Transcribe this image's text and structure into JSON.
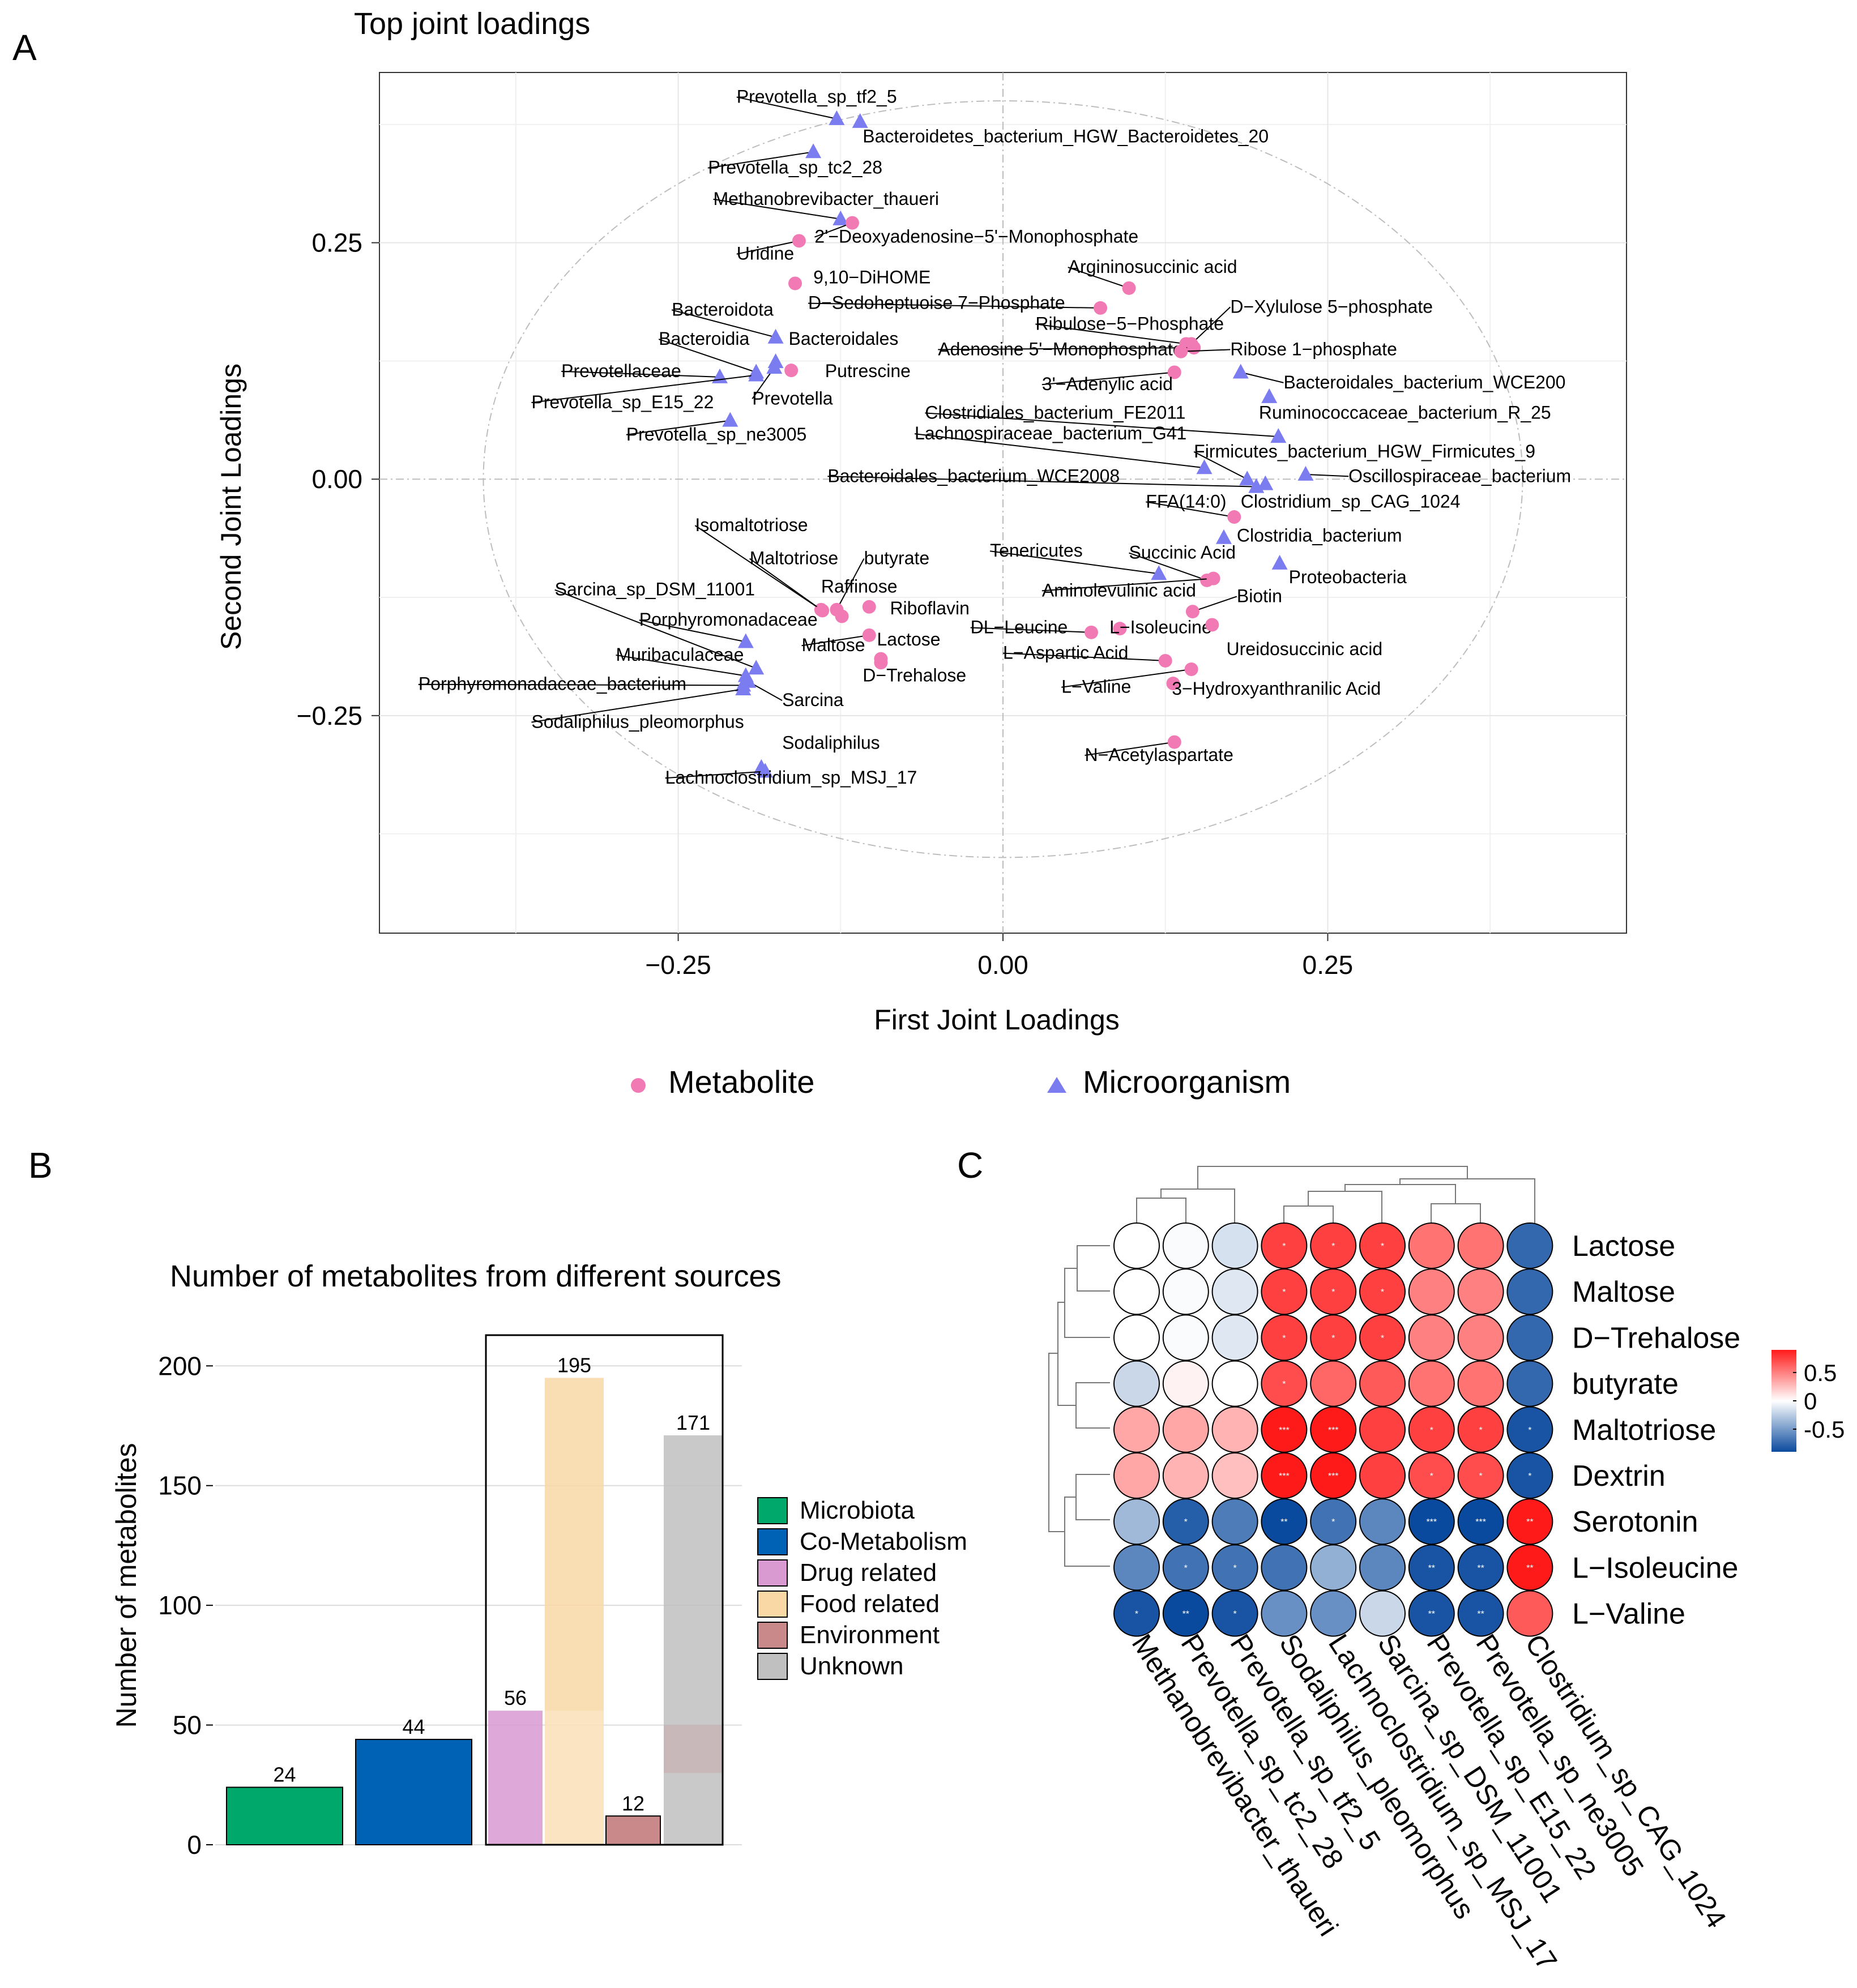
{
  "panel_labels": {
    "a": "A",
    "b": "B",
    "c": "C"
  },
  "colors": {
    "metabolite": "#f27ab4",
    "metabolite_dark": "#e8186e",
    "microorganism": "#7b7cf0",
    "microorganism_dark": "#2a2af0",
    "Microbiota": "#00a86b",
    "Co-Metabolism": "#0062b4",
    "Drug related": "#d89ad1",
    "Food related": "#f9d8a6",
    "Environment": "#c9888a",
    "Unknown": "#c0c0c0"
  },
  "chart_data": [
    {
      "type": "scatter",
      "title": "Top joint loadings",
      "xlabel": "First Joint Loadings",
      "ylabel": "Second Joint Loadings",
      "xlim": [
        -0.48,
        0.48
      ],
      "ylim": [
        -0.48,
        0.43
      ],
      "xticks": [
        -0.25,
        0.0,
        0.25
      ],
      "yticks": [
        -0.25,
        0.0,
        0.25
      ],
      "xtick_labels": [
        "−0.25",
        "0.00",
        "0.25"
      ],
      "ytick_labels": [
        "−0.25",
        "0.00",
        "0.25"
      ],
      "legend": [
        {
          "name": "Metabolite",
          "shape": "circle"
        },
        {
          "name": "Microorganism",
          "shape": "triangle"
        }
      ],
      "points": [
        {
          "label": "Prevotella_sp_tf2_5",
          "x": -0.128,
          "y": 0.381,
          "group": "Microorganism",
          "lx": -0.205,
          "ly": 0.398
        },
        {
          "label": "Bacteroidetes_bacterium_HGW_Bacteroidetes_20",
          "x": -0.11,
          "y": 0.378,
          "group": "Microorganism",
          "lx": -0.108,
          "ly": 0.356
        },
        {
          "label": "Prevotella_sp_tc2_28",
          "x": -0.146,
          "y": 0.346,
          "group": "Microorganism",
          "lx": -0.227,
          "ly": 0.323
        },
        {
          "label": "Methanobrevibacter_thaueri",
          "x": -0.125,
          "y": 0.275,
          "group": "Microorganism",
          "lx": -0.223,
          "ly": 0.29
        },
        {
          "label": "2'−Deoxyadenosine−5'−Monophosphate",
          "x": -0.116,
          "y": 0.271,
          "group": "Metabolite",
          "lx": -0.145,
          "ly": 0.25
        },
        {
          "label": "Uridine",
          "x": -0.157,
          "y": 0.252,
          "group": "Metabolite",
          "lx": -0.205,
          "ly": 0.232
        },
        {
          "label": "9,10−DiHOME",
          "x": -0.16,
          "y": 0.207,
          "group": "Metabolite",
          "lx": -0.146,
          "ly": 0.207
        },
        {
          "label": "Argininosuccinic acid",
          "x": 0.097,
          "y": 0.202,
          "group": "Metabolite",
          "lx": 0.05,
          "ly": 0.218
        },
        {
          "label": "D−Sedoheptuoise 7−Phosphate",
          "x": 0.075,
          "y": 0.181,
          "group": "Metabolite",
          "lx": -0.15,
          "ly": 0.18
        },
        {
          "label": "D−Xylulose 5−phosphate",
          "x": 0.145,
          "y": 0.143,
          "group": "Metabolite",
          "lx": 0.175,
          "ly": 0.176
        },
        {
          "label": "Ribulose−5−Phosphate",
          "x": 0.141,
          "y": 0.143,
          "group": "Metabolite",
          "lx": 0.025,
          "ly": 0.158
        },
        {
          "label": "Adenosine 5'−Monophosphate",
          "x": 0.147,
          "y": 0.139,
          "group": "Metabolite",
          "lx": -0.05,
          "ly": 0.131
        },
        {
          "label": "Ribose 1−phosphate",
          "x": 0.137,
          "y": 0.135,
          "group": "Metabolite",
          "lx": 0.175,
          "ly": 0.131
        },
        {
          "label": "3'−Adenylic acid",
          "x": 0.132,
          "y": 0.113,
          "group": "Metabolite",
          "lx": 0.03,
          "ly": 0.094
        },
        {
          "label": "Bacteroidales_bacterium_WCE200",
          "x": 0.183,
          "y": 0.113,
          "group": "Microorganism",
          "lx": 0.216,
          "ly": 0.096
        },
        {
          "label": "Ruminococcaceae_bacterium_R_25",
          "x": 0.205,
          "y": 0.087,
          "group": "Microorganism",
          "lx": 0.197,
          "ly": 0.064
        },
        {
          "label": "Clostridiales_bacterium_FE2011",
          "x": 0.212,
          "y": 0.045,
          "group": "Microorganism",
          "lx": -0.06,
          "ly": 0.064
        },
        {
          "label": "Lachnospiraceae_bacterium_G41",
          "x": 0.155,
          "y": 0.012,
          "group": "Microorganism",
          "lx": -0.068,
          "ly": 0.042
        },
        {
          "label": "Firmicutes_bacterium_HGW_Firmicutes_9",
          "x": 0.188,
          "y": 0.0,
          "group": "Microorganism",
          "lx": 0.147,
          "ly": 0.023
        },
        {
          "label": "Oscillospiraceae_bacterium",
          "x": 0.233,
          "y": 0.005,
          "group": "Microorganism",
          "lx": 0.266,
          "ly": -0.003
        },
        {
          "label": "Bacteroidales_bacterium_WCE2008",
          "x": 0.195,
          "y": -0.008,
          "group": "Microorganism",
          "lx": -0.135,
          "ly": -0.003
        },
        {
          "label": "FFA(14:0)",
          "x": 0.178,
          "y": -0.04,
          "group": "Metabolite",
          "lx": 0.11,
          "ly": -0.03
        },
        {
          "label": "Clostridium_sp_CAG_1024",
          "x": 0.202,
          "y": -0.005,
          "group": "Microorganism",
          "lx": 0.183,
          "ly": -0.03
        },
        {
          "label": "Bacteroidota",
          "x": -0.175,
          "y": 0.15,
          "group": "Microorganism",
          "lx": -0.255,
          "ly": 0.173
        },
        {
          "label": "Bacteroidia",
          "x": -0.19,
          "y": 0.113,
          "group": "Microorganism",
          "lx": -0.265,
          "ly": 0.142
        },
        {
          "label": "Bacteroidales",
          "x": -0.175,
          "y": 0.124,
          "group": "Microorganism",
          "lx": -0.165,
          "ly": 0.142
        },
        {
          "label": "Prevotellaceae",
          "x": -0.218,
          "y": 0.108,
          "group": "Microorganism",
          "lx": -0.34,
          "ly": 0.108
        },
        {
          "label": "Putrescine",
          "x": -0.163,
          "y": 0.115,
          "group": "Metabolite",
          "lx": -0.137,
          "ly": 0.108
        },
        {
          "label": "Prevotella_sp_E15_22",
          "x": -0.19,
          "y": 0.11,
          "group": "Microorganism",
          "lx": -0.363,
          "ly": 0.075
        },
        {
          "label": "Prevotella",
          "x": -0.176,
          "y": 0.118,
          "group": "Microorganism",
          "lx": -0.193,
          "ly": 0.079
        },
        {
          "label": "Prevotella_sp_ne3005",
          "x": -0.21,
          "y": 0.062,
          "group": "Microorganism",
          "lx": -0.29,
          "ly": 0.041
        },
        {
          "label": "Isomaltotriose",
          "x": -0.14,
          "y": -0.138,
          "group": "Metabolite",
          "lx": -0.237,
          "ly": -0.055
        },
        {
          "label": "Maltotriose",
          "x": -0.139,
          "y": -0.139,
          "group": "Metabolite",
          "lx": -0.195,
          "ly": -0.09
        },
        {
          "label": "butyrate",
          "x": -0.128,
          "y": -0.138,
          "group": "Metabolite",
          "lx": -0.107,
          "ly": -0.09
        },
        {
          "label": "Raffinose",
          "x": -0.124,
          "y": -0.145,
          "group": "Metabolite",
          "lx": -0.14,
          "ly": -0.12
        },
        {
          "label": "Riboflavin",
          "x": -0.103,
          "y": -0.135,
          "group": "Metabolite",
          "lx": -0.087,
          "ly": -0.143
        },
        {
          "label": "Sarcina_sp_DSM_11001",
          "x": -0.19,
          "y": -0.2,
          "group": "Microorganism",
          "lx": -0.345,
          "ly": -0.123
        },
        {
          "label": "Porphyromonadaceae",
          "x": -0.198,
          "y": -0.172,
          "group": "Microorganism",
          "lx": -0.28,
          "ly": -0.155
        },
        {
          "label": "Maltose",
          "x": -0.103,
          "y": -0.165,
          "group": "Metabolite",
          "lx": -0.155,
          "ly": -0.182
        },
        {
          "label": "Lactose",
          "x": -0.094,
          "y": -0.19,
          "group": "Metabolite",
          "lx": -0.097,
          "ly": -0.176
        },
        {
          "label": "D−Trehalose",
          "x": -0.094,
          "y": -0.194,
          "group": "Metabolite",
          "lx": -0.108,
          "ly": -0.214
        },
        {
          "label": "Muribaculaceae",
          "x": -0.198,
          "y": -0.208,
          "group": "Microorganism",
          "lx": -0.298,
          "ly": -0.192
        },
        {
          "label": "Porphyromonadaceae_bacterium",
          "x": -0.2,
          "y": -0.218,
          "group": "Microorganism",
          "lx": -0.45,
          "ly": -0.223
        },
        {
          "label": "Sarcina",
          "x": -0.196,
          "y": -0.214,
          "group": "Microorganism",
          "lx": -0.17,
          "ly": -0.24
        },
        {
          "label": "Sodaliphilus_pleomorphus",
          "x": -0.2,
          "y": -0.222,
          "group": "Microorganism",
          "lx": -0.363,
          "ly": -0.263
        },
        {
          "label": "Sodaliphilus",
          "x": -0.186,
          "y": -0.305,
          "group": "Microorganism",
          "lx": -0.17,
          "ly": -0.285
        },
        {
          "label": "Lachnoclostridium_sp_MSJ_17",
          "x": -0.183,
          "y": -0.309,
          "group": "Microorganism",
          "lx": -0.26,
          "ly": -0.322
        },
        {
          "label": "Tenericutes",
          "x": 0.12,
          "y": -0.1,
          "group": "Microorganism",
          "lx": -0.01,
          "ly": -0.082
        },
        {
          "label": "Succinic Acid",
          "x": 0.157,
          "y": -0.107,
          "group": "Metabolite",
          "lx": 0.097,
          "ly": -0.084
        },
        {
          "label": "Clostridia_bacterium",
          "x": 0.17,
          "y": -0.062,
          "group": "Microorganism",
          "lx": 0.18,
          "ly": -0.066
        },
        {
          "label": "Proteobacteria",
          "x": 0.213,
          "y": -0.089,
          "group": "Microorganism",
          "lx": 0.22,
          "ly": -0.11
        },
        {
          "label": "Aminolevulinic acid",
          "x": 0.162,
          "y": -0.105,
          "group": "Metabolite",
          "lx": 0.03,
          "ly": -0.124
        },
        {
          "label": "Biotin",
          "x": 0.146,
          "y": -0.14,
          "group": "Metabolite",
          "lx": 0.18,
          "ly": -0.13
        },
        {
          "label": "DL−Leucine",
          "x": 0.068,
          "y": -0.162,
          "group": "Metabolite",
          "lx": -0.025,
          "ly": -0.163
        },
        {
          "label": "L−Isoleucine",
          "x": 0.09,
          "y": -0.158,
          "group": "Metabolite",
          "lx": 0.082,
          "ly": -0.163
        },
        {
          "label": "Ureidosuccinic acid",
          "x": 0.161,
          "y": -0.154,
          "group": "Metabolite",
          "lx": 0.172,
          "ly": -0.186
        },
        {
          "label": "L−Aspartic Acid",
          "x": 0.125,
          "y": -0.192,
          "group": "Metabolite",
          "lx": 0.0,
          "ly": -0.19
        },
        {
          "label": "L−Valine",
          "x": 0.145,
          "y": -0.201,
          "group": "Metabolite",
          "lx": 0.045,
          "ly": -0.226
        },
        {
          "label": "3−Hydroxyanthranilic Acid",
          "x": 0.131,
          "y": -0.216,
          "group": "Metabolite",
          "lx": 0.13,
          "ly": -0.228
        },
        {
          "label": "N−Acetylaspartate",
          "x": 0.132,
          "y": -0.278,
          "group": "Metabolite",
          "lx": 0.063,
          "ly": -0.298
        }
      ]
    },
    {
      "type": "bar",
      "title": "Number of metabolites from different sources",
      "xlabel": "",
      "ylabel": "Number of metabolites",
      "ylim": [
        0,
        210
      ],
      "yticks": [
        0,
        50,
        100,
        150,
        200
      ],
      "categories": [
        "Microbiota",
        "Co-Metabolism",
        "Drug related",
        "Food related",
        "Environment",
        "Unknown"
      ],
      "values": [
        24,
        44,
        56,
        195,
        12,
        171
      ],
      "value_labels": [
        "24",
        "44",
        "56",
        "195",
        "12",
        "171"
      ],
      "legend": [
        "Microbiota",
        "Co-Metabolism",
        "Drug related",
        "Food related",
        "Environment",
        "Unknown"
      ]
    },
    {
      "type": "heatmap",
      "rows": [
        "Lactose",
        "Maltose",
        "D−Trehalose",
        "butyrate",
        "Maltotriose",
        "Dextrin",
        "Serotonin",
        "L−Isoleucine",
        "L−Valine"
      ],
      "columns": [
        "Methanobrevibacter_thaueri",
        "Prevotella_sp_tc2_28",
        "Prevotella_sp_tf2_5",
        "Sodaliphilus_pleomorphus",
        "Lachnoclostridium_sp_MSJ_17",
        "Sarcina_sp_DSM_11001",
        "Prevotella_sp_E15_22",
        "Prevotella_sp_ne3005",
        "Clostridium_sp_CAG_1024"
      ],
      "values": [
        [
          0.0,
          -0.02,
          -0.15,
          0.75,
          0.75,
          0.75,
          0.55,
          0.55,
          -0.75
        ],
        [
          0.0,
          -0.02,
          -0.12,
          0.75,
          0.75,
          0.75,
          0.5,
          0.5,
          -0.75
        ],
        [
          0.0,
          -0.02,
          -0.12,
          0.75,
          0.75,
          0.75,
          0.5,
          0.5,
          -0.75
        ],
        [
          -0.2,
          0.05,
          0.0,
          0.7,
          0.6,
          0.65,
          0.55,
          0.55,
          -0.75
        ],
        [
          0.35,
          0.35,
          0.3,
          0.9,
          0.9,
          0.75,
          0.75,
          0.75,
          -0.85
        ],
        [
          0.35,
          0.3,
          0.25,
          0.9,
          0.9,
          0.75,
          0.7,
          0.7,
          -0.85
        ],
        [
          -0.35,
          -0.8,
          -0.65,
          -0.9,
          -0.7,
          -0.6,
          -0.9,
          -0.9,
          0.9
        ],
        [
          -0.6,
          -0.7,
          -0.7,
          -0.7,
          -0.4,
          -0.6,
          -0.85,
          -0.85,
          0.9
        ],
        [
          -0.85,
          -0.9,
          -0.85,
          -0.55,
          -0.55,
          -0.2,
          -0.85,
          -0.85,
          0.65
        ]
      ],
      "stars": [
        [
          "",
          "",
          "",
          "*",
          "*",
          "*",
          "",
          "",
          ""
        ],
        [
          "",
          "",
          "",
          "*",
          "*",
          "*",
          "",
          "",
          ""
        ],
        [
          "",
          "",
          "",
          "*",
          "*",
          "*",
          "",
          "",
          ""
        ],
        [
          "",
          "",
          "",
          "*",
          "",
          "",
          "",
          "",
          ""
        ],
        [
          "",
          "",
          "",
          "***",
          "***",
          "",
          "*",
          "*",
          "*"
        ],
        [
          "",
          "",
          "",
          "***",
          "***",
          "",
          "*",
          "*",
          "*"
        ],
        [
          "",
          "*",
          "",
          "**",
          "*",
          "",
          "***",
          "***",
          "**"
        ],
        [
          "",
          "*",
          "*",
          "",
          "",
          "",
          "**",
          "**",
          "**"
        ],
        [
          "*",
          "**",
          "*",
          "",
          "",
          "",
          "**",
          "**",
          ""
        ]
      ],
      "color_scale": {
        "min": -0.9,
        "max": 0.9,
        "ticks": [
          0.5,
          0,
          -0.5
        ],
        "tick_labels": [
          "0.5",
          "0",
          "-0.5"
        ]
      }
    }
  ]
}
